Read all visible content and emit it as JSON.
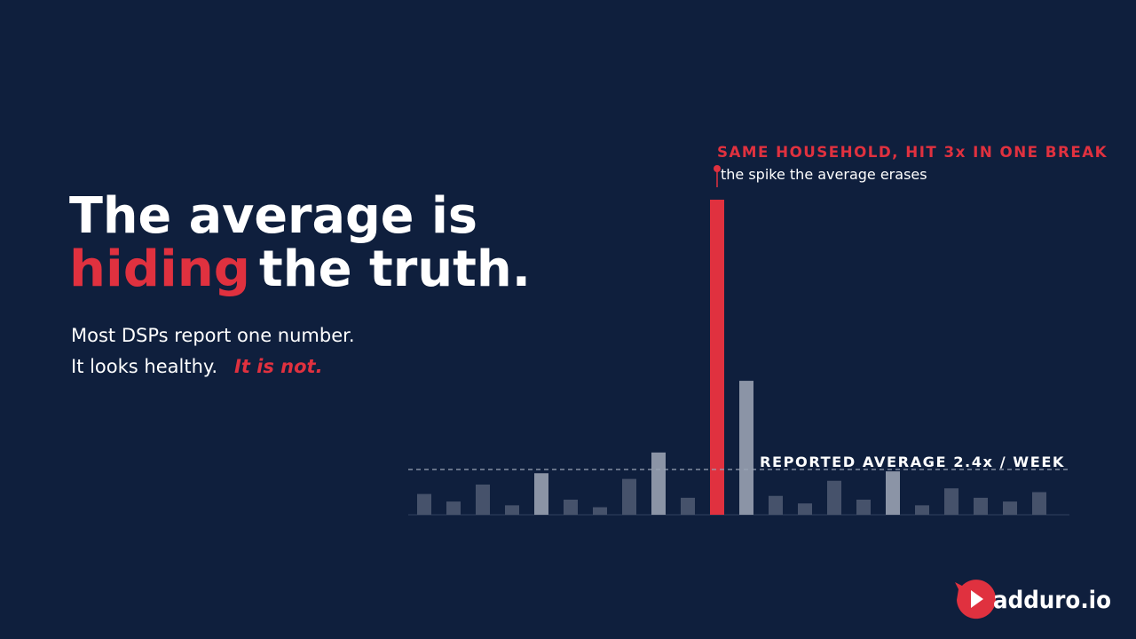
{
  "headline": {
    "line1": "The average is",
    "highlight": "hiding",
    "rest": "the truth."
  },
  "subtitle": {
    "line1": "Most DSPs report one number.",
    "line2": "It looks healthy.",
    "emphasis": "It is not."
  },
  "logo": "adduro.io",
  "chart_data": {
    "type": "bar",
    "annotation": "SAME HOUSEHOLD, HIT 3x IN ONE BREAK",
    "annotation_sub": "the spike the average erases",
    "average": 2.4,
    "average_label": "REPORTED AVERAGE 2.4x / WEEK",
    "categories": [
      null,
      null,
      null,
      null,
      null,
      null,
      null,
      null,
      null,
      null,
      null,
      null,
      null,
      null,
      null,
      null,
      null,
      null,
      null,
      null,
      null,
      null
    ],
    "values": [
      1.1,
      0.7,
      1.6,
      0.5,
      2.2,
      0.8,
      0.4,
      1.9,
      3.3,
      0.9,
      16.7,
      7.1,
      1.0,
      0.6,
      1.8,
      0.8,
      2.3,
      0.5,
      1.4,
      0.9,
      0.7,
      1.2
    ],
    "colors": [
      "#46526b",
      "#46526b",
      "#46526b",
      "#46526b",
      "#8b94a6",
      "#46526b",
      "#46526b",
      "#46526b",
      "#8b94a6",
      "#46526b",
      "#e0313f",
      "#8b94a6",
      "#46526b",
      "#46526b",
      "#46526b",
      "#46526b",
      "#8b94a6",
      "#46526b",
      "#46526b",
      "#46526b",
      "#46526b",
      "#46526b"
    ],
    "ylim": [
      0,
      17.5
    ]
  }
}
